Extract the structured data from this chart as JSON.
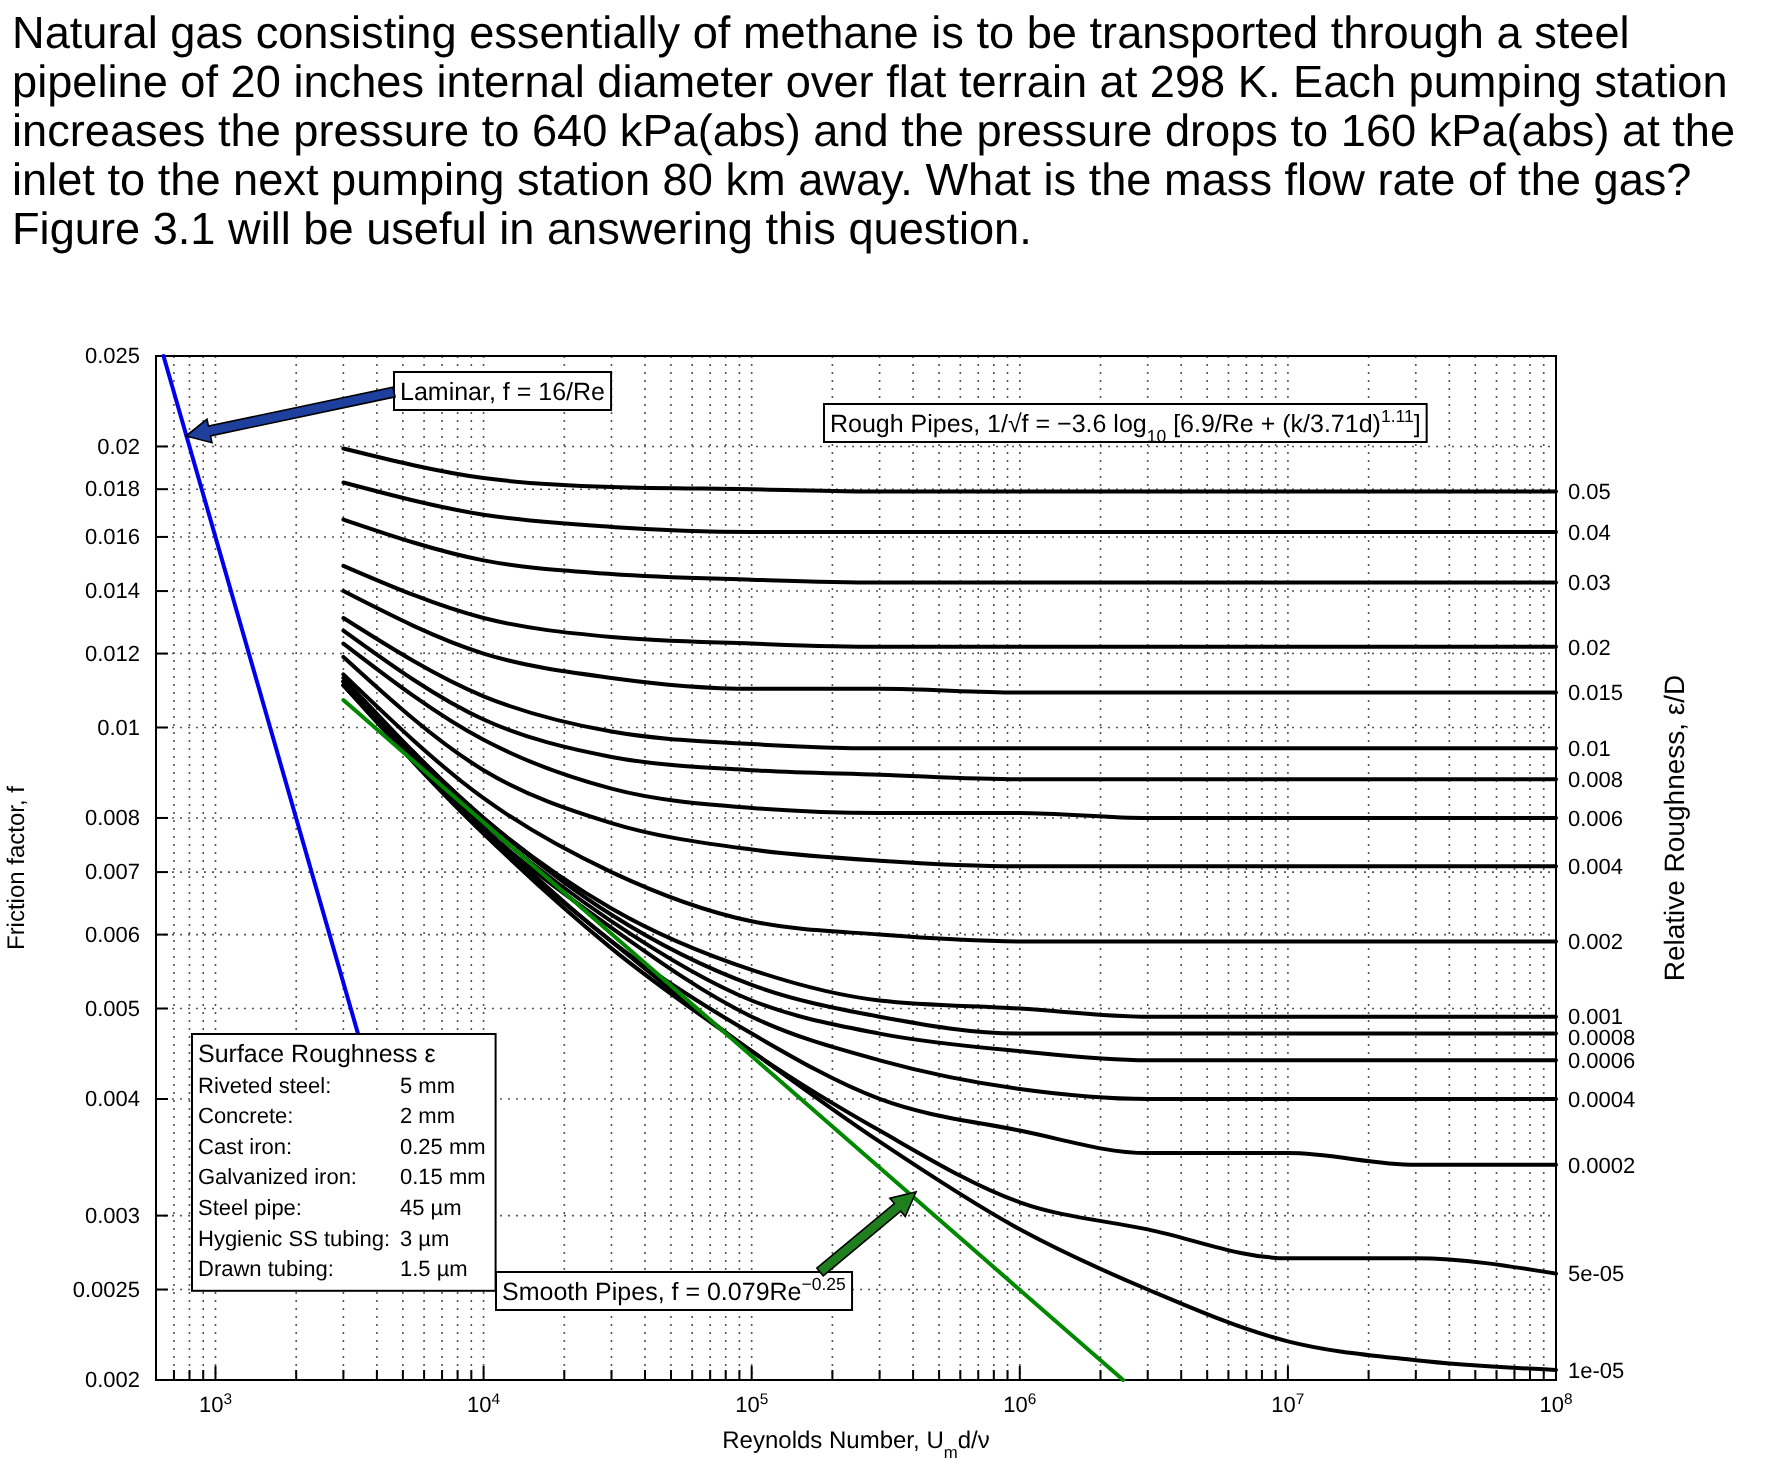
{
  "chart_data": {
    "type": "line",
    "title": "Natural gas consisting essentially of methane is to be transported through a steel pipeline of 20 inches internal diameter over flat terrain at 298 K. Each pumping station increases the pressure to 640 kPa(abs) and the pressure drops to 160 kPa(abs) at the inlet to the next pumping station 80 km away. What is the mass flow rate of the gas? Figure 3.1 will be useful in answering this question.",
    "xlabel": "Reynolds Number, U$_{m}$d/ν",
    "ylabel": "Friction factor, f",
    "y2label": "Relative Roughness, ε/D",
    "log": "xy",
    "grid": true,
    "marker": "none",
    "line_style": "solid",
    "xlim": [
      600,
      100000000
    ],
    "xticks": [
      {
        "value": 700,
        "label": null
      },
      {
        "value": 800,
        "label": null
      },
      {
        "value": 900,
        "label": null
      },
      {
        "value": 1000,
        "label": "10$^{3}$"
      },
      {
        "value": 2000,
        "label": null
      },
      {
        "value": 3000,
        "label": null
      },
      {
        "value": 4000,
        "label": null
      },
      {
        "value": 5000,
        "label": null
      },
      {
        "value": 6000,
        "label": null
      },
      {
        "value": 7000,
        "label": null
      },
      {
        "value": 8000,
        "label": null
      },
      {
        "value": 9000,
        "label": null
      },
      {
        "value": 10000,
        "label": "10$^{4}$"
      },
      {
        "value": 20000,
        "label": null
      },
      {
        "value": 30000,
        "label": null
      },
      {
        "value": 40000,
        "label": null
      },
      {
        "value": 50000,
        "label": null
      },
      {
        "value": 60000,
        "label": null
      },
      {
        "value": 70000,
        "label": null
      },
      {
        "value": 80000,
        "label": null
      },
      {
        "value": 90000,
        "label": null
      },
      {
        "value": 100000,
        "label": "10$^{5}$"
      },
      {
        "value": 200000,
        "label": null
      },
      {
        "value": 300000,
        "label": null
      },
      {
        "value": 400000,
        "label": null
      },
      {
        "value": 500000,
        "label": null
      },
      {
        "value": 600000,
        "label": null
      },
      {
        "value": 700000,
        "label": null
      },
      {
        "value": 800000,
        "label": null
      },
      {
        "value": 900000,
        "label": null
      },
      {
        "value": 1000000,
        "label": "10$^{6}$"
      },
      {
        "value": 2000000,
        "label": null
      },
      {
        "value": 3000000,
        "label": null
      },
      {
        "value": 4000000,
        "label": null
      },
      {
        "value": 5000000,
        "label": null
      },
      {
        "value": 6000000,
        "label": null
      },
      {
        "value": 7000000,
        "label": null
      },
      {
        "value": 8000000,
        "label": null
      },
      {
        "value": 9000000,
        "label": null
      },
      {
        "value": 10000000,
        "label": "10$^{7}$"
      },
      {
        "value": 20000000,
        "label": null
      },
      {
        "value": 30000000,
        "label": null
      },
      {
        "value": 40000000,
        "label": null
      },
      {
        "value": 50000000,
        "label": null
      },
      {
        "value": 60000000,
        "label": null
      },
      {
        "value": 70000000,
        "label": null
      },
      {
        "value": 80000000,
        "label": null
      },
      {
        "value": 90000000,
        "label": null
      },
      {
        "value": 100000000,
        "label": "10$^{8}$"
      }
    ],
    "ylim": [
      0.002,
      0.025
    ],
    "yticks": [
      0.002,
      0.0025,
      0.003,
      0.004,
      0.005,
      0.006,
      0.007,
      0.008,
      0.01,
      0.012,
      0.014,
      0.016,
      0.018,
      0.02,
      0.025
    ],
    "x": [
      3000,
      10000,
      30000,
      100000,
      300000,
      1000000,
      3000000,
      10000000,
      30000000,
      100000000
    ],
    "series": [
      {
        "name": "0.05",
        "color": "#000000",
        "values": [
          0.0199,
          0.0185,
          0.0181,
          0.018,
          0.0179,
          0.0179,
          0.0179,
          0.0179,
          0.0179,
          0.0179
        ]
      },
      {
        "name": "0.04",
        "color": "#000000",
        "values": [
          0.0183,
          0.0169,
          0.0164,
          0.0162,
          0.0162,
          0.0162,
          0.0162,
          0.0162,
          0.0162,
          0.0162
        ]
      },
      {
        "name": "0.03",
        "color": "#000000",
        "values": [
          0.0167,
          0.0151,
          0.0146,
          0.0144,
          0.0143,
          0.0143,
          0.0143,
          0.0143,
          0.0143,
          0.0143
        ]
      },
      {
        "name": "0.02",
        "color": "#000000",
        "values": [
          0.0149,
          0.0131,
          0.0125,
          0.0123,
          0.0122,
          0.0122,
          0.0122,
          0.0122,
          0.0122,
          0.0122
        ]
      },
      {
        "name": "0.015",
        "color": "#000000",
        "values": [
          0.014,
          0.012,
          0.0113,
          0.011,
          0.011,
          0.0109,
          0.0109,
          0.0109,
          0.0109,
          0.0109
        ]
      },
      {
        "name": "0.01",
        "color": "#000000",
        "values": [
          0.0131,
          0.0108,
          0.0099,
          0.0096,
          0.0095,
          0.0095,
          0.0095,
          0.0095,
          0.0095,
          0.0095
        ]
      },
      {
        "name": "0.008",
        "color": "#000000",
        "values": [
          0.0127,
          0.0102,
          0.0093,
          0.009,
          0.0089,
          0.0088,
          0.0088,
          0.0088,
          0.0088,
          0.0088
        ]
      },
      {
        "name": "0.006",
        "color": "#000000",
        "values": [
          0.0123,
          0.0097,
          0.0086,
          0.0082,
          0.0081,
          0.0081,
          0.008,
          0.008,
          0.008,
          0.008
        ]
      },
      {
        "name": "0.004",
        "color": "#000000",
        "values": [
          0.0119,
          0.009,
          0.0079,
          0.0074,
          0.0072,
          0.0071,
          0.0071,
          0.0071,
          0.0071,
          0.0071
        ]
      },
      {
        "name": "0.002",
        "color": "#000000",
        "values": [
          0.0114,
          0.0084,
          0.007,
          0.0062,
          0.006,
          0.0059,
          0.0059,
          0.0059,
          0.0059,
          0.0059
        ]
      },
      {
        "name": "0.001",
        "color": "#000000",
        "values": [
          0.0113,
          0.008,
          0.0064,
          0.0055,
          0.0051,
          0.005,
          0.0049,
          0.0049,
          0.0049,
          0.0049
        ]
      },
      {
        "name": "0.0008",
        "color": "#000000",
        "values": [
          0.0112,
          0.008,
          0.0063,
          0.0053,
          0.0049,
          0.0047,
          0.0047,
          0.0047,
          0.0047,
          0.0047
        ]
      },
      {
        "name": "0.0006",
        "color": "#000000",
        "values": [
          0.0112,
          0.0079,
          0.0062,
          0.0051,
          0.0047,
          0.0045,
          0.0044,
          0.0044,
          0.0044,
          0.0044
        ]
      },
      {
        "name": "0.0004",
        "color": "#000000",
        "values": [
          0.0112,
          0.0078,
          0.0061,
          0.0049,
          0.0044,
          0.0041,
          0.004,
          0.004,
          0.004,
          0.004
        ]
      },
      {
        "name": "0.0002",
        "color": "#000000",
        "values": [
          0.0111,
          0.0078,
          0.0059,
          0.0047,
          0.004,
          0.0037,
          0.0035,
          0.0035,
          0.0034,
          0.0034
        ]
      },
      {
        "name": "5e-05",
        "color": "#000000",
        "values": [
          0.0111,
          0.0077,
          0.0059,
          0.0045,
          0.0037,
          0.0031,
          0.0029,
          0.0027,
          0.0027,
          0.0026
        ]
      },
      {
        "name": "1e-05",
        "color": "#000000",
        "values": [
          0.0111,
          0.0077,
          0.0058,
          0.0045,
          0.0036,
          0.0029,
          0.0025,
          0.0022,
          0.0021,
          0.00205
        ]
      },
      {
        "color": "#0000ee",
        "x": [
          640,
          3400
        ],
        "values": [
          0.025,
          0.0047
        ]
      },
      {
        "color": "#008800",
        "x": [
          3000,
          2430000
        ],
        "values": [
          0.0107,
          0.002
        ]
      }
    ],
    "annotations": [
      "Laminar, f = 16/Re",
      "Rough Pipes, 1/√f = −3.6 log$_{10}$ [6.9/Re + (k/3.71d)$^{1.11}$]",
      "Smooth Pipes, f = 0.079Re$^{−0.25}$",
      "Surface Roughness ε",
      "Riveted steel: 5 mm",
      "Concrete: 2 mm",
      "Cast iron: 0.25 mm",
      "Galvanized iron: 0.15 mm",
      "Steel pipe: 45 µm",
      "Hygienic SS tubing: 3 µm",
      "Drawn tubing: 1.5 µm"
    ]
  }
}
